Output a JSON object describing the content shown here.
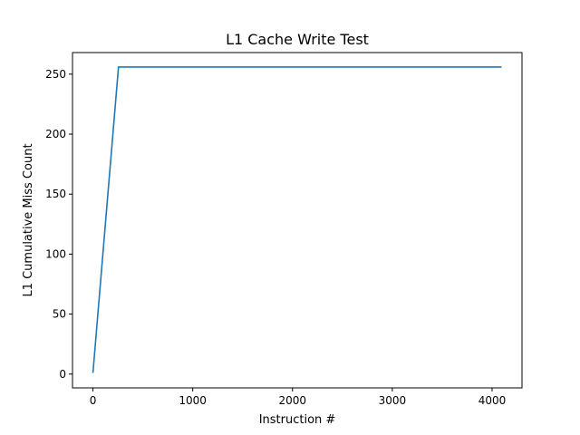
{
  "chart_data": {
    "type": "line",
    "title": "L1 Cache Write Test",
    "xlabel": "Instruction #",
    "ylabel": "L1 Cumulative Miss Count",
    "xlim": [
      -205,
      4300
    ],
    "ylim": [
      -11.5,
      268
    ],
    "xticks": [
      0,
      1000,
      2000,
      3000,
      4000
    ],
    "yticks": [
      0,
      50,
      100,
      150,
      200,
      250
    ],
    "grid": false,
    "legend": "none",
    "series": [
      {
        "color": "#1f77b4",
        "x": [
          0,
          256,
          4096
        ],
        "y": [
          1,
          256,
          256
        ]
      }
    ]
  }
}
